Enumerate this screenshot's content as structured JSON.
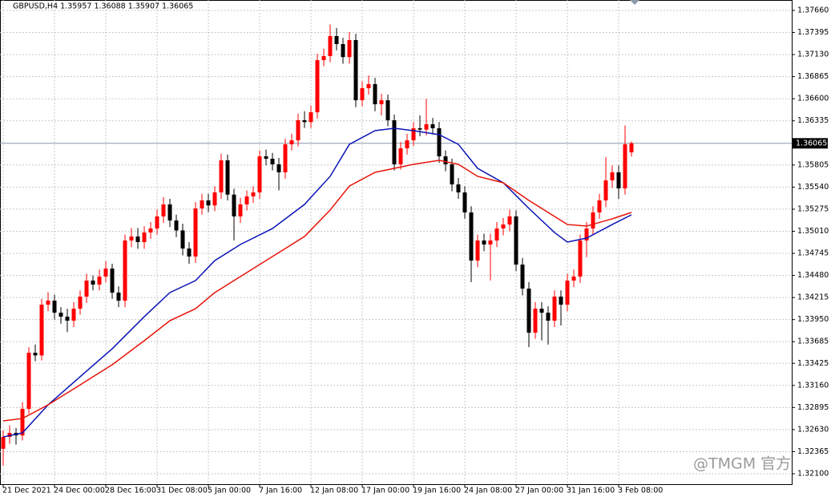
{
  "chart_data": {
    "type": "candlestick",
    "title": "GBPUSD,H4  1.35957 1.36088 1.35907 1.36065",
    "watermark": "@TMGM 官方",
    "x": [
      "21 Dec 2021",
      null,
      null,
      null,
      null,
      null,
      null,
      null,
      "24 Dec 00:00",
      null,
      null,
      null,
      null,
      null,
      null,
      null,
      "28 Dec 16:00",
      null,
      null,
      null,
      null,
      null,
      null,
      null,
      "31 Dec 08:00",
      null,
      null,
      null,
      null,
      null,
      null,
      null,
      "5 Jan 00:00",
      null,
      null,
      null,
      null,
      null,
      null,
      null,
      "7 Jan 16:00",
      null,
      null,
      null,
      null,
      null,
      null,
      null,
      "12 Jan 08:00",
      null,
      null,
      null,
      null,
      null,
      null,
      null,
      "17 Jan 00:00",
      null,
      null,
      null,
      null,
      null,
      null,
      null,
      "19 Jan 16:00",
      null,
      null,
      null,
      null,
      null,
      null,
      null,
      "24 Jan 08:00",
      null,
      null,
      null,
      null,
      null,
      null,
      null,
      "27 Jan 00:00",
      null,
      null,
      null,
      null,
      null,
      null,
      null,
      "31 Jan 16:00",
      null,
      null,
      null,
      null,
      null,
      null,
      null,
      "3 Feb 08:00",
      null,
      null
    ],
    "open": [
      1.324,
      1.32542,
      1.3259,
      1.3256,
      1.32879,
      1.33552,
      1.3352,
      1.34129,
      1.34177,
      1.34033,
      1.33985,
      1.33937,
      1.34081,
      1.34226,
      1.34418,
      1.3437,
      1.34466,
      1.34562,
      1.34274,
      1.34177,
      1.34899,
      1.34947,
      1.3488,
      1.34995,
      1.35043,
      1.35188,
      1.35332,
      1.35139,
      1.3502,
      1.34803,
      1.34707,
      1.35284,
      1.3538,
      1.3532,
      1.35476,
      1.35861,
      1.3545,
      1.35188,
      1.35332,
      1.35428,
      1.35476,
      1.35909,
      1.3588,
      1.35813,
      1.35717,
      1.36053,
      1.36101,
      1.36342,
      1.3632,
      1.36438,
      1.37063,
      1.37112,
      1.37352,
      1.37256,
      1.371,
      1.37304,
      1.36582,
      1.36727,
      1.36775,
      1.36534,
      1.36582,
      1.36342,
      1.35813,
      1.36005,
      1.36101,
      1.36246,
      1.3623,
      1.36294,
      1.36246,
      1.35909,
      1.35813,
      1.35572,
      1.35476,
      1.35236,
      1.34658,
      1.34899,
      1.34851,
      1.34899,
      1.35043,
      1.35091,
      1.35188,
      1.3461,
      1.34322,
      1.33793,
      1.34081,
      1.34033,
      1.33937,
      1.34226,
      1.34129,
      1.34418,
      1.34466,
      1.34899,
      1.35043,
      1.35236,
      1.3538,
      1.3562,
      1.35717,
      1.35524,
      1.35957
    ],
    "high": [
      1.3262,
      1.3268,
      1.3265,
      1.3296,
      1.3362,
      1.3365,
      1.342,
      1.3428,
      1.3425,
      1.341,
      1.3408,
      1.3416,
      1.343,
      1.345,
      1.3448,
      1.3455,
      1.3465,
      1.3462,
      1.3435,
      1.3497,
      1.3505,
      1.3505,
      1.3507,
      1.3512,
      1.3527,
      1.3542,
      1.354,
      1.3521,
      1.351,
      1.3488,
      1.3536,
      1.3546,
      1.3546,
      1.3555,
      1.3594,
      1.3593,
      1.3552,
      1.3541,
      1.355,
      1.3555,
      1.3598,
      1.3599,
      1.3595,
      1.3589,
      1.3612,
      1.3618,
      1.3642,
      1.3645,
      1.3652,
      1.3714,
      1.372,
      1.3749,
      1.3745,
      1.3733,
      1.374,
      1.3738,
      1.3681,
      1.3688,
      1.3685,
      1.3666,
      1.3665,
      1.3641,
      1.3608,
      1.3618,
      1.3632,
      1.364,
      1.366,
      1.3637,
      1.3632,
      1.3598,
      1.3588,
      1.3565,
      1.3555,
      1.3531,
      1.3497,
      1.3498,
      1.3498,
      1.3512,
      1.3517,
      1.3527,
      1.3526,
      1.3469,
      1.344,
      1.3416,
      1.3416,
      1.3411,
      1.343,
      1.343,
      1.345,
      1.3455,
      1.3497,
      1.3512,
      1.3531,
      1.3546,
      1.359,
      1.358,
      1.358,
      1.3628,
      1.36088
    ],
    "low": [
      1.322,
      1.3246,
      1.3245,
      1.325,
      1.3282,
      1.3345,
      1.3346,
      1.3405,
      1.3395,
      1.339,
      1.338,
      1.3386,
      1.3401,
      1.3415,
      1.343,
      1.343,
      1.344,
      1.342,
      1.341,
      1.341,
      1.3482,
      1.348,
      1.348,
      1.3492,
      1.3497,
      1.3511,
      1.3506,
      1.3494,
      1.3472,
      1.3462,
      1.3463,
      1.3521,
      1.3524,
      1.3525,
      1.354,
      1.3538,
      1.349,
      1.3511,
      1.3526,
      1.3535,
      1.354,
      1.358,
      1.3574,
      1.355,
      1.3564,
      1.3598,
      1.3603,
      1.3625,
      1.3625,
      1.3636,
      1.3699,
      1.3704,
      1.3718,
      1.3702,
      1.3702,
      1.365,
      1.3651,
      1.3665,
      1.3645,
      1.364,
      1.3627,
      1.3574,
      1.3575,
      1.3593,
      1.3603,
      1.3615,
      1.3616,
      1.3617,
      1.3583,
      1.3573,
      1.3549,
      1.354,
      1.3516,
      1.344,
      1.3458,
      1.3477,
      1.3442,
      1.3482,
      1.3496,
      1.3501,
      1.3453,
      1.3424,
      1.3362,
      1.3372,
      1.337,
      1.3365,
      1.3386,
      1.3388,
      1.3405,
      1.3434,
      1.3439,
      1.347,
      1.3497,
      1.3516,
      1.353,
      1.3553,
      1.354,
      1.3545,
      1.35907
    ],
    "close": [
      1.32542,
      1.3259,
      1.3256,
      1.32879,
      1.33552,
      1.3352,
      1.34129,
      1.34177,
      1.34033,
      1.33985,
      1.33937,
      1.34081,
      1.34226,
      1.34418,
      1.3437,
      1.34466,
      1.34562,
      1.34274,
      1.34177,
      1.34899,
      1.34947,
      1.3488,
      1.34995,
      1.35043,
      1.35188,
      1.35332,
      1.35139,
      1.3502,
      1.34803,
      1.34707,
      1.35284,
      1.3538,
      1.3532,
      1.35476,
      1.35861,
      1.3545,
      1.35188,
      1.35332,
      1.35428,
      1.35476,
      1.35909,
      1.3588,
      1.35813,
      1.35717,
      1.36053,
      1.36101,
      1.36342,
      1.3632,
      1.36438,
      1.37063,
      1.37112,
      1.37352,
      1.37256,
      1.371,
      1.37304,
      1.36582,
      1.36727,
      1.36775,
      1.36534,
      1.36582,
      1.36342,
      1.35813,
      1.36005,
      1.36101,
      1.36246,
      1.3623,
      1.36294,
      1.36246,
      1.35909,
      1.35813,
      1.35572,
      1.35476,
      1.35236,
      1.34658,
      1.34899,
      1.34851,
      1.34899,
      1.35043,
      1.35091,
      1.35188,
      1.3461,
      1.34322,
      1.33793,
      1.34081,
      1.34033,
      1.33937,
      1.34226,
      1.34129,
      1.34418,
      1.34466,
      1.34899,
      1.35043,
      1.35236,
      1.3538,
      1.3562,
      1.35717,
      1.35524,
      1.36053,
      1.36065
    ],
    "up_color": "#ff0000",
    "down_color": "#000000",
    "lines": [
      {
        "color": "#0a14b4",
        "x": [
          0,
          3,
          7,
          12,
          17,
          22,
          26,
          30,
          33,
          37,
          42,
          47,
          51,
          54,
          58,
          61,
          64,
          68,
          71,
          74,
          78,
          82,
          86,
          88,
          91,
          95,
          98
        ],
        "values": [
          1.32542,
          1.3259,
          1.32927,
          1.33264,
          1.336,
          1.33985,
          1.34274,
          1.34418,
          1.34658,
          1.34851,
          1.35043,
          1.35332,
          1.35669,
          1.36053,
          1.36217,
          1.36246,
          1.36217,
          1.36169,
          1.36053,
          1.35765,
          1.35592,
          1.35284,
          1.34995,
          1.3488,
          1.34928,
          1.35091,
          1.35207
        ]
      },
      {
        "color": "#e8140a",
        "x": [
          0,
          3,
          7,
          12,
          17,
          22,
          26,
          30,
          33,
          37,
          42,
          47,
          51,
          54,
          58,
          61,
          64,
          68,
          71,
          74,
          78,
          82,
          86,
          88,
          91,
          95,
          98
        ],
        "values": [
          1.32735,
          1.32763,
          1.32927,
          1.33167,
          1.33408,
          1.33697,
          1.33937,
          1.34081,
          1.34274,
          1.34466,
          1.34707,
          1.34947,
          1.35265,
          1.35553,
          1.35717,
          1.35765,
          1.35813,
          1.35861,
          1.35813,
          1.35669,
          1.35592,
          1.3538,
          1.35188,
          1.35091,
          1.35072,
          1.35159,
          1.35236
        ]
      }
    ],
    "last_price": 1.36065,
    "ylim": [
      1.31975,
      1.37785
    ],
    "yticks": [
      {
        "value": 1.3766,
        "label": "1.37660"
      },
      1.37395,
      {
        "value": 1.3713,
        "label": "1.37130"
      },
      1.36865,
      {
        "value": 1.366,
        "label": "1.36600"
      },
      1.36335,
      1.35805,
      {
        "value": 1.3554,
        "label": "1.35540"
      },
      1.35275,
      {
        "value": 1.3501,
        "label": "1.35010"
      },
      1.34745,
      {
        "value": 1.3448,
        "label": "1.34480"
      },
      1.34215,
      {
        "value": 1.3395,
        "label": "1.33950"
      },
      1.33685,
      1.33425,
      {
        "value": 1.3316,
        "label": "1.33160"
      },
      1.32895,
      {
        "value": 1.3263,
        "label": "1.32630"
      },
      1.32365,
      {
        "value": 1.321,
        "label": "1.32100"
      }
    ],
    "grid": true
  }
}
